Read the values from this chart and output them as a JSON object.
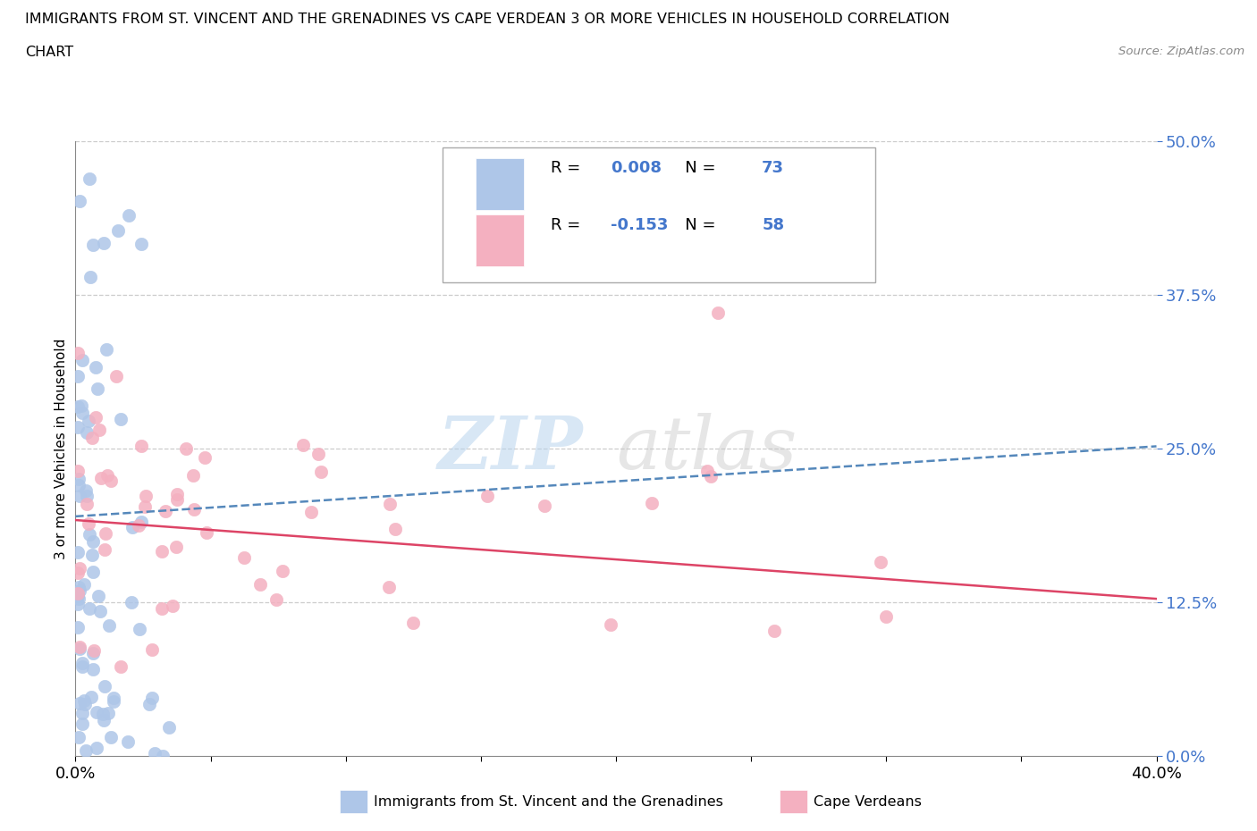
{
  "title_line1": "IMMIGRANTS FROM ST. VINCENT AND THE GRENADINES VS CAPE VERDEAN 3 OR MORE VEHICLES IN HOUSEHOLD CORRELATION",
  "title_line2": "CHART",
  "source": "Source: ZipAtlas.com",
  "ylabel": "3 or more Vehicles in Household",
  "xlim": [
    0.0,
    0.4
  ],
  "ylim": [
    0.0,
    0.5
  ],
  "yticks": [
    0.0,
    0.125,
    0.25,
    0.375,
    0.5
  ],
  "ytick_labels": [
    "0.0%",
    "12.5%",
    "25.0%",
    "37.5%",
    "50.0%"
  ],
  "xticks": [
    0.0,
    0.05,
    0.1,
    0.15,
    0.2,
    0.25,
    0.3,
    0.35,
    0.4
  ],
  "xtick_labels": [
    "0.0%",
    "",
    "",
    "",
    "",
    "",
    "",
    "",
    "40.0%"
  ],
  "blue_R": 0.008,
  "blue_N": 73,
  "pink_R": -0.153,
  "pink_N": 58,
  "blue_color": "#aec6e8",
  "pink_color": "#f4b0c0",
  "blue_line_color": "#5588bb",
  "pink_line_color": "#dd4466",
  "legend_label_blue": "Immigrants from St. Vincent and the Grenadines",
  "legend_label_pink": "Cape Verdeans",
  "watermark_zip": "ZIP",
  "watermark_atlas": "atlas",
  "blue_trend_y0": 0.195,
  "blue_trend_y1": 0.252,
  "pink_trend_y0": 0.192,
  "pink_trend_y1": 0.128,
  "grid_color": "#cccccc",
  "grid_style": "--",
  "text_color_blue": "#4477cc",
  "label_fontsize": 13,
  "title_fontsize": 11.5
}
